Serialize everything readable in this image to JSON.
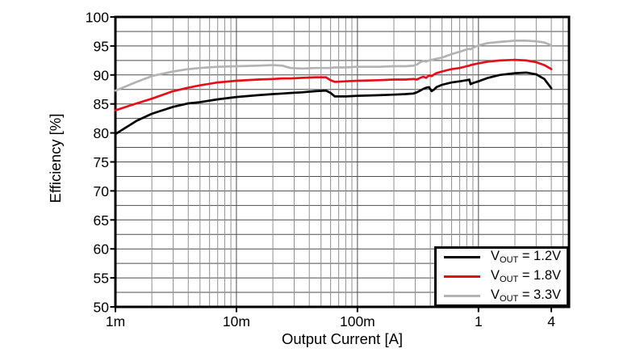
{
  "chart_data": {
    "type": "line",
    "title": "",
    "xlabel": "Output Current [A]",
    "ylabel": "Efficiency [%]",
    "x_scale": "log",
    "xlim": [
      0.001,
      5.6
    ],
    "ylim": [
      50,
      100
    ],
    "grid": "on",
    "y_gridline_step": 2.5,
    "legend_position": "bottom-right",
    "x_ticks": [
      {
        "v": 0.001,
        "label": "1m"
      },
      {
        "v": 0.01,
        "label": "10m"
      },
      {
        "v": 0.1,
        "label": "100m"
      },
      {
        "v": 1,
        "label": "1"
      },
      {
        "v": 4,
        "label": "4"
      }
    ],
    "y_ticks": [
      50,
      55,
      60,
      65,
      70,
      75,
      80,
      85,
      90,
      95,
      100
    ],
    "x": [
      0.001,
      0.0015,
      0.002,
      0.003,
      0.004,
      0.005,
      0.007,
      0.01,
      0.015,
      0.02,
      0.024,
      0.028,
      0.035,
      0.045,
      0.055,
      0.06,
      0.065,
      0.08,
      0.1,
      0.15,
      0.2,
      0.25,
      0.29,
      0.31,
      0.33,
      0.35,
      0.37,
      0.39,
      0.41,
      0.43,
      0.45,
      0.5,
      0.6,
      0.7,
      0.8,
      0.84,
      0.86,
      0.9,
      1.0,
      1.2,
      1.5,
      2.0,
      2.5,
      3.0,
      3.5,
      4.0
    ],
    "series": [
      {
        "name": "VOUT = 1.2V",
        "label_main": "V",
        "label_sub": "OUT",
        "label_suffix": " = 1.2V",
        "color": "#000000",
        "values": [
          79.8,
          82.1,
          83.3,
          84.5,
          85.1,
          85.3,
          85.8,
          86.2,
          86.5,
          86.7,
          86.8,
          86.9,
          87.0,
          87.2,
          87.3,
          86.9,
          86.3,
          86.3,
          86.4,
          86.5,
          86.6,
          86.7,
          86.8,
          87.0,
          87.3,
          87.6,
          87.8,
          87.9,
          87.2,
          87.5,
          87.9,
          88.3,
          88.7,
          88.9,
          89.1,
          89.2,
          88.4,
          88.6,
          88.9,
          89.5,
          90.0,
          90.3,
          90.4,
          90.1,
          89.3,
          87.7
        ]
      },
      {
        "name": "VOUT = 1.8V",
        "label_main": "V",
        "label_sub": "OUT",
        "label_suffix": " = 1.8V",
        "color": "#e60f19",
        "values": [
          83.9,
          85.1,
          85.9,
          87.2,
          87.8,
          88.2,
          88.7,
          89.0,
          89.2,
          89.3,
          89.4,
          89.4,
          89.5,
          89.6,
          89.6,
          89.1,
          88.8,
          88.9,
          89.0,
          89.1,
          89.2,
          89.2,
          89.3,
          89.2,
          89.5,
          89.7,
          89.5,
          89.9,
          89.8,
          90.1,
          90.3,
          90.6,
          91.0,
          91.2,
          91.5,
          91.6,
          91.7,
          91.8,
          92.0,
          92.3,
          92.5,
          92.6,
          92.5,
          92.2,
          91.7,
          91.0
        ]
      },
      {
        "name": "VOUT = 3.3V",
        "label_main": "V",
        "label_sub": "OUT",
        "label_suffix": " = 3.3V",
        "color": "#b3b3b3",
        "values": [
          87.3,
          88.8,
          89.8,
          90.6,
          91.0,
          91.2,
          91.4,
          91.5,
          91.6,
          91.7,
          91.6,
          91.2,
          91.1,
          91.2,
          91.2,
          91.2,
          91.3,
          91.3,
          91.4,
          91.4,
          91.5,
          91.5,
          91.6,
          91.8,
          92.2,
          92.4,
          92.3,
          92.5,
          92.6,
          92.7,
          92.8,
          93.0,
          93.6,
          94.0,
          94.4,
          94.5,
          94.4,
          94.7,
          95.1,
          95.5,
          95.7,
          95.9,
          95.9,
          95.8,
          95.6,
          95.1
        ]
      }
    ]
  },
  "colors": {
    "background": "#ffffff",
    "axis": "#000000",
    "grid_major": "#4d4d4d",
    "grid_minor": "#909090",
    "text": "#000000"
  }
}
